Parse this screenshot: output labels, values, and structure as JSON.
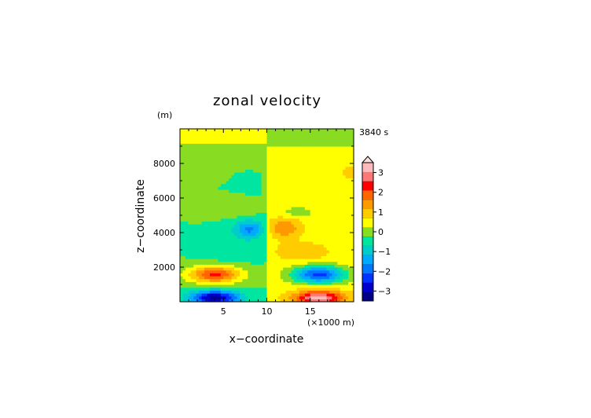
{
  "chart_data": {
    "type": "heatmap",
    "title": "zonal velocity",
    "xlabel": "x−coordinate",
    "ylabel": "z−coordinate",
    "y_unit": "(m)",
    "x_unit": "(×1000 m)",
    "time_label": "3840 s",
    "xlim": [
      0,
      20
    ],
    "ylim": [
      0,
      10000
    ],
    "x_ticks": [
      5,
      10,
      15
    ],
    "y_ticks": [
      2000,
      4000,
      6000,
      8000
    ],
    "x_tick_labels": [
      "5",
      "10",
      "15"
    ],
    "y_tick_labels": [
      "2000",
      "4000",
      "6000",
      "8000"
    ],
    "colorbar": {
      "levels": [
        -3.5,
        -3,
        -2.5,
        -2,
        -1.5,
        -1,
        -0.5,
        0,
        0.5,
        1,
        1.5,
        2,
        2.5,
        3,
        3.5
      ],
      "tick_values": [
        -3,
        -2,
        -1,
        0,
        1,
        2,
        3
      ],
      "tick_labels": [
        "−3",
        "−2",
        "−1",
        "0",
        "1",
        "2",
        "3"
      ],
      "colors": [
        "#000088",
        "#0000cc",
        "#0033ff",
        "#0077ff",
        "#00aaff",
        "#00cccc",
        "#00e6a0",
        "#88dd22",
        "#ffff00",
        "#ffcc00",
        "#ff9900",
        "#ff6600",
        "#ff0000",
        "#ff7777",
        "#ffbbbb"
      ],
      "extend_max": true
    },
    "features": [
      {
        "x": 4,
        "z": 250,
        "value": -3.2,
        "sx": 2.8,
        "sz": 400
      },
      {
        "x": 16,
        "z": 250,
        "value": 3.0,
        "sx": 2.8,
        "sz": 400
      },
      {
        "x": 4,
        "z": 1600,
        "value": 2.6,
        "sx": 3.0,
        "sz": 500
      },
      {
        "x": 16,
        "z": 1600,
        "value": -3.0,
        "sx": 3.0,
        "sz": 500
      },
      {
        "x": 6,
        "z": 2900,
        "value": -0.5,
        "sx": 3.0,
        "sz": 550
      },
      {
        "x": 14,
        "z": 2900,
        "value": 0.6,
        "sx": 3.0,
        "sz": 550
      },
      {
        "x": 8,
        "z": 4200,
        "value": -1.6,
        "sx": 1.8,
        "sz": 550
      },
      {
        "x": 12,
        "z": 4300,
        "value": 1.2,
        "sx": 1.8,
        "sz": 550
      },
      {
        "x": 6.5,
        "z": 5200,
        "value": 0.4,
        "sx": 2.0,
        "sz": 300
      },
      {
        "x": 13.5,
        "z": 5200,
        "value": -0.6,
        "sx": 2.0,
        "sz": 300
      },
      {
        "x": 0.3,
        "z": 7500,
        "value": 0.4,
        "sx": 1.0,
        "sz": 450
      },
      {
        "x": 19.7,
        "z": 7500,
        "value": 0.4,
        "sx": 1.0,
        "sz": 450
      }
    ],
    "background": {
      "left": -0.5,
      "right": 0.3,
      "top_left": 0.5,
      "top_right": -0.4
    }
  }
}
